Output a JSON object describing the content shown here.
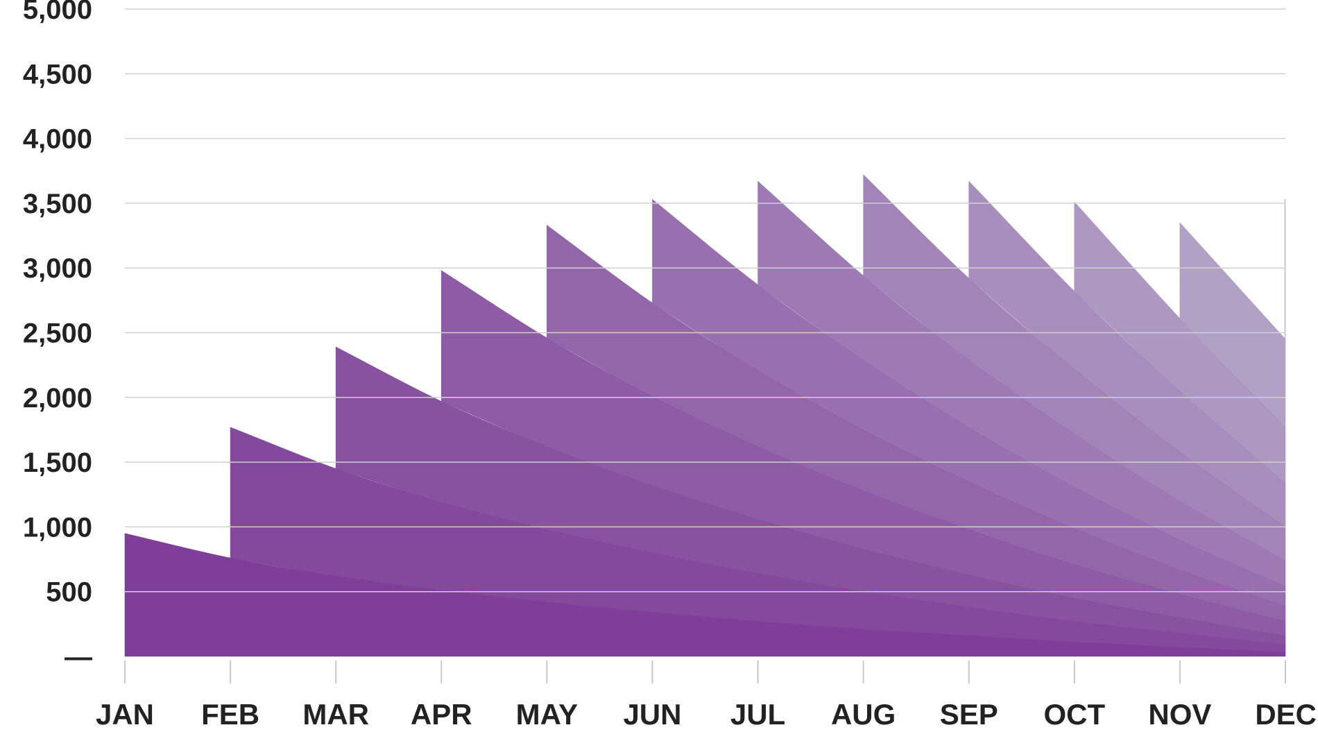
{
  "chart_data": {
    "type": "area",
    "stacked": true,
    "title": "",
    "xlabel": "",
    "ylabel": "",
    "categories": [
      "JAN",
      "FEB",
      "MAR",
      "APR",
      "MAY",
      "JUN",
      "JUL",
      "AUG",
      "SEP",
      "OCT",
      "NOV",
      "DEC"
    ],
    "ylim": [
      0,
      5000
    ],
    "y_ticks": [
      {
        "value": 0,
        "label": "—"
      },
      {
        "value": 500,
        "label": "500"
      },
      {
        "value": 1000,
        "label": "1,000"
      },
      {
        "value": 1500,
        "label": "1,500"
      },
      {
        "value": 2000,
        "label": "2,000"
      },
      {
        "value": 2500,
        "label": "2,500"
      },
      {
        "value": 3000,
        "label": "3,000"
      },
      {
        "value": 3500,
        "label": "3,500"
      },
      {
        "value": 4000,
        "label": "4,000"
      },
      {
        "value": 4500,
        "label": "4,500"
      },
      {
        "value": 5000,
        "label": "5,000"
      }
    ],
    "grid": true,
    "legend": "none",
    "series": [
      {
        "values": [
          950,
          760,
          620,
          510,
          420,
          340,
          270,
          210,
          160,
          110,
          70,
          30
        ],
        "color": "#7f3f98"
      },
      {
        "values": [
          null,
          1010,
          830,
          680,
          560,
          460,
          370,
          290,
          220,
          160,
          110,
          60
        ],
        "color": "#84489c"
      },
      {
        "values": [
          null,
          null,
          940,
          780,
          640,
          520,
          420,
          330,
          250,
          180,
          120,
          70
        ],
        "color": "#8952a1"
      },
      {
        "values": [
          null,
          null,
          null,
          1010,
          840,
          690,
          560,
          450,
          350,
          260,
          180,
          110
        ],
        "color": "#8e5ca6"
      },
      {
        "values": [
          null,
          null,
          null,
          null,
          870,
          720,
          590,
          470,
          370,
          280,
          190,
          120
        ],
        "color": "#9366aa"
      },
      {
        "values": [
          null,
          null,
          null,
          null,
          null,
          800,
          660,
          540,
          420,
          320,
          230,
          150
        ],
        "color": "#9870af"
      },
      {
        "values": [
          null,
          null,
          null,
          null,
          null,
          null,
          800,
          650,
          520,
          410,
          300,
          200
        ],
        "color": "#9d7ab3"
      },
      {
        "values": [
          null,
          null,
          null,
          null,
          null,
          null,
          null,
          780,
          630,
          500,
          380,
          260
        ],
        "color": "#a284b8"
      },
      {
        "values": [
          null,
          null,
          null,
          null,
          null,
          null,
          null,
          null,
          750,
          600,
          470,
          340
        ],
        "color": "#a78ebc"
      },
      {
        "values": [
          null,
          null,
          null,
          null,
          null,
          null,
          null,
          null,
          null,
          690,
          560,
          430
        ],
        "color": "#ac98c1"
      },
      {
        "values": [
          null,
          null,
          null,
          null,
          null,
          null,
          null,
          null,
          null,
          null,
          740,
          680
        ],
        "color": "#b1a2c5"
      },
      {
        "values": [
          null,
          null,
          null,
          null,
          null,
          null,
          null,
          null,
          null,
          null,
          null,
          1080
        ],
        "color": "#c4b2d6"
      }
    ]
  }
}
